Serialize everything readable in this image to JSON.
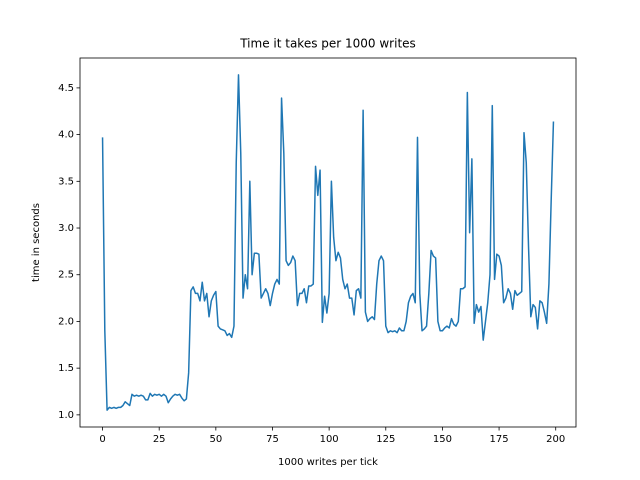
{
  "chart_data": {
    "type": "line",
    "title": "Time it takes per 1000 writes",
    "x_label": "1000 writes per tick",
    "y_label": "time in seconds",
    "color": "#1f77b4",
    "grid": false,
    "xlim": [
      -9.95,
      208.95
    ],
    "ylim": [
      0.87,
      4.82
    ],
    "xticks": [
      0,
      25,
      50,
      75,
      100,
      125,
      150,
      175,
      200
    ],
    "yticks": [
      {
        "value": 1,
        "label": "1.0"
      },
      1.5,
      {
        "value": 2,
        "label": "2.0"
      },
      2.5,
      {
        "value": 3,
        "label": "3.0"
      },
      3.5,
      {
        "value": 4,
        "label": "4.0"
      },
      4.5
    ],
    "x": [
      0,
      1,
      2,
      3,
      4,
      5,
      6,
      7,
      8,
      9,
      10,
      11,
      12,
      13,
      14,
      15,
      16,
      17,
      18,
      19,
      20,
      21,
      22,
      23,
      24,
      25,
      26,
      27,
      28,
      29,
      30,
      31,
      32,
      33,
      34,
      35,
      36,
      37,
      38,
      39,
      40,
      41,
      42,
      43,
      44,
      45,
      46,
      47,
      48,
      49,
      50,
      51,
      52,
      53,
      54,
      55,
      56,
      57,
      58,
      59,
      60,
      61,
      62,
      63,
      64,
      65,
      66,
      67,
      68,
      69,
      70,
      71,
      72,
      73,
      74,
      75,
      76,
      77,
      78,
      79,
      80,
      81,
      82,
      83,
      84,
      85,
      86,
      87,
      88,
      89,
      90,
      91,
      92,
      93,
      94,
      95,
      96,
      97,
      98,
      99,
      100,
      101,
      102,
      103,
      104,
      105,
      106,
      107,
      108,
      109,
      110,
      111,
      112,
      113,
      114,
      115,
      116,
      117,
      118,
      119,
      120,
      121,
      122,
      123,
      124,
      125,
      126,
      127,
      128,
      129,
      130,
      131,
      132,
      133,
      134,
      135,
      136,
      137,
      138,
      139,
      140,
      141,
      142,
      143,
      144,
      145,
      146,
      147,
      148,
      149,
      150,
      151,
      152,
      153,
      154,
      155,
      156,
      157,
      158,
      159,
      160,
      161,
      162,
      163,
      164,
      165,
      166,
      167,
      168,
      169,
      170,
      171,
      172,
      173,
      174,
      175,
      176,
      177,
      178,
      179,
      180,
      181,
      182,
      183,
      184,
      185,
      186,
      187,
      188,
      189,
      190,
      191,
      192,
      193,
      194,
      195,
      196,
      197,
      198,
      199
    ],
    "values": [
      3.97,
      1.9,
      1.05,
      1.08,
      1.07,
      1.08,
      1.07,
      1.08,
      1.08,
      1.1,
      1.14,
      1.12,
      1.1,
      1.22,
      1.2,
      1.21,
      1.2,
      1.21,
      1.2,
      1.16,
      1.16,
      1.23,
      1.2,
      1.22,
      1.21,
      1.22,
      1.2,
      1.22,
      1.2,
      1.13,
      1.17,
      1.2,
      1.22,
      1.21,
      1.22,
      1.18,
      1.15,
      1.17,
      1.45,
      2.33,
      2.37,
      2.3,
      2.3,
      2.22,
      2.42,
      2.22,
      2.3,
      2.05,
      2.22,
      2.28,
      2.32,
      1.95,
      1.92,
      1.91,
      1.9,
      1.85,
      1.87,
      1.83,
      1.95,
      3.7,
      4.64,
      3.8,
      2.25,
      2.5,
      2.35,
      3.5,
      2.5,
      2.73,
      2.73,
      2.72,
      2.25,
      2.3,
      2.35,
      2.3,
      2.17,
      2.3,
      2.4,
      2.45,
      2.4,
      4.39,
      3.8,
      2.65,
      2.6,
      2.63,
      2.7,
      2.65,
      2.17,
      2.3,
      2.3,
      2.35,
      2.2,
      2.38,
      2.38,
      2.4,
      3.66,
      3.35,
      3.62,
      1.99,
      2.27,
      2.09,
      2.3,
      3.5,
      2.9,
      2.65,
      2.74,
      2.68,
      2.45,
      2.35,
      2.4,
      2.25,
      2.25,
      2.07,
      2.33,
      2.35,
      2.25,
      4.26,
      2.1,
      2.0,
      2.03,
      2.05,
      2.02,
      2.4,
      2.65,
      2.7,
      2.65,
      1.95,
      1.88,
      1.9,
      1.89,
      1.9,
      1.88,
      1.93,
      1.9,
      1.9,
      2.0,
      2.2,
      2.27,
      2.3,
      2.2,
      3.97,
      2.3,
      1.9,
      1.92,
      1.95,
      2.3,
      2.76,
      2.7,
      2.68,
      2.0,
      1.9,
      1.9,
      1.93,
      1.95,
      1.93,
      2.03,
      1.97,
      1.95,
      2.0,
      2.35,
      2.35,
      2.37,
      4.45,
      2.95,
      3.74,
      1.98,
      2.18,
      2.1,
      2.16,
      1.8,
      2.0,
      2.2,
      2.5,
      4.31,
      2.45,
      2.72,
      2.7,
      2.6,
      2.2,
      2.25,
      2.35,
      2.3,
      2.13,
      2.33,
      2.28,
      2.3,
      2.32,
      4.02,
      3.7,
      2.8,
      2.05,
      2.18,
      2.15,
      1.92,
      2.22,
      2.2,
      2.1,
      1.98,
      2.4,
      3.3,
      4.14
    ]
  }
}
